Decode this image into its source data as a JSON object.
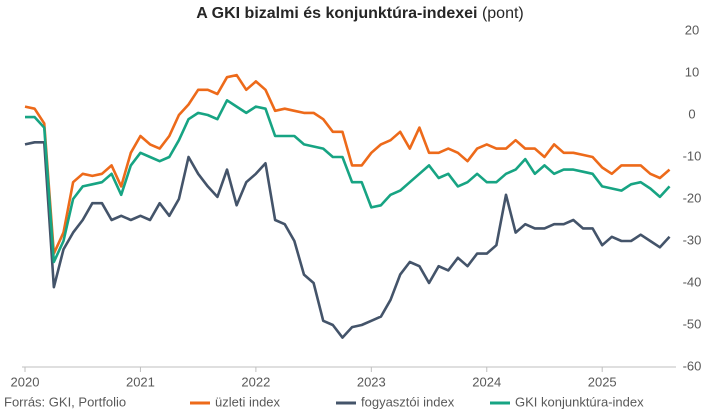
{
  "chart_data": {
    "type": "line",
    "title": "A GKI bizalmi és konjunktúra-indexei",
    "title_unit": "(pont)",
    "source": "Forrás: GKI, Portfolio",
    "categories": [
      "2020",
      null,
      null,
      null,
      null,
      null,
      null,
      null,
      null,
      null,
      null,
      null,
      "2021",
      null,
      null,
      null,
      null,
      null,
      null,
      null,
      null,
      null,
      null,
      null,
      "2022",
      null,
      null,
      null,
      null,
      null,
      null,
      null,
      null,
      null,
      null,
      null,
      "2023",
      null,
      null,
      null,
      null,
      null,
      null,
      null,
      null,
      null,
      null,
      null,
      "2024",
      null,
      null,
      null,
      null,
      null,
      null,
      null,
      null,
      null,
      null,
      null,
      "2025",
      null,
      null,
      null,
      null,
      null,
      null,
      null
    ],
    "series": [
      {
        "name": "üzleti index",
        "color": "#ed6a1a",
        "values": [
          2,
          1.5,
          -2,
          -33,
          -28,
          -16,
          -14,
          -14.5,
          -14,
          -12,
          -17,
          -9,
          -5,
          -7,
          -8,
          -5,
          0,
          2.5,
          6,
          6,
          5,
          9,
          9.5,
          6,
          8,
          6,
          1,
          1.5,
          1,
          0.5,
          0.5,
          -1,
          -4,
          -4,
          -12,
          -12,
          -9,
          -7,
          -6,
          -4,
          -8,
          -3,
          -9,
          -9,
          -8,
          -9,
          -11,
          -8,
          -7,
          -8,
          -8,
          -6,
          -8,
          -8,
          -10,
          -7,
          -9,
          -9,
          -9.5,
          -10,
          -12.5,
          -14,
          -12,
          -12,
          -12,
          -14,
          -15,
          -13
        ]
      },
      {
        "name": "fogyasztói index",
        "color": "#44546a",
        "values": [
          -7,
          -6.5,
          -6.5,
          -41,
          -32,
          -28,
          -25,
          -21,
          -21,
          -25,
          -24,
          -25,
          -24,
          -25,
          -21,
          -24,
          -20,
          -10,
          -14,
          -17,
          -19.5,
          -13,
          -21.5,
          -16,
          -14,
          -11.5,
          -25,
          -26,
          -30,
          -38,
          -40,
          -49,
          -50,
          -53,
          -50.5,
          -50,
          -49,
          -48,
          -44,
          -38,
          -35,
          -36,
          -40,
          -36,
          -37,
          -34,
          -36,
          -33,
          -33,
          -31,
          -19,
          -28,
          -26,
          -27,
          -27,
          -26,
          -26,
          -25,
          -27,
          -27,
          -31,
          -29,
          -30,
          -30,
          -28.5,
          -30,
          -31.5,
          -29
        ]
      },
      {
        "name": "GKI konjunktúra-index",
        "color": "#17a483",
        "values": [
          -0.5,
          -0.5,
          -3,
          -35,
          -30,
          -20,
          -17,
          -16.5,
          -16,
          -14,
          -19,
          -12,
          -9,
          -10,
          -11,
          -10,
          -6,
          -1,
          0.5,
          0,
          -1,
          3.5,
          2,
          0.5,
          2,
          1.5,
          -5,
          -5,
          -5,
          -7,
          -7.5,
          -8,
          -10,
          -10,
          -16,
          -16,
          -22,
          -21.5,
          -19,
          -18,
          -16,
          -14,
          -12,
          -15,
          -14,
          -17,
          -16,
          -14,
          -16,
          -16,
          -14,
          -13,
          -10.5,
          -14,
          -12,
          -14,
          -13,
          -13,
          -13.5,
          -14,
          -17,
          -17.5,
          -18,
          -16.5,
          -16,
          -17.5,
          -19.5,
          -17
        ]
      }
    ],
    "ylim": [
      -60,
      20
    ],
    "yticks": [
      -60,
      -50,
      -40,
      -30,
      -20,
      -10,
      0,
      10,
      20
    ]
  }
}
